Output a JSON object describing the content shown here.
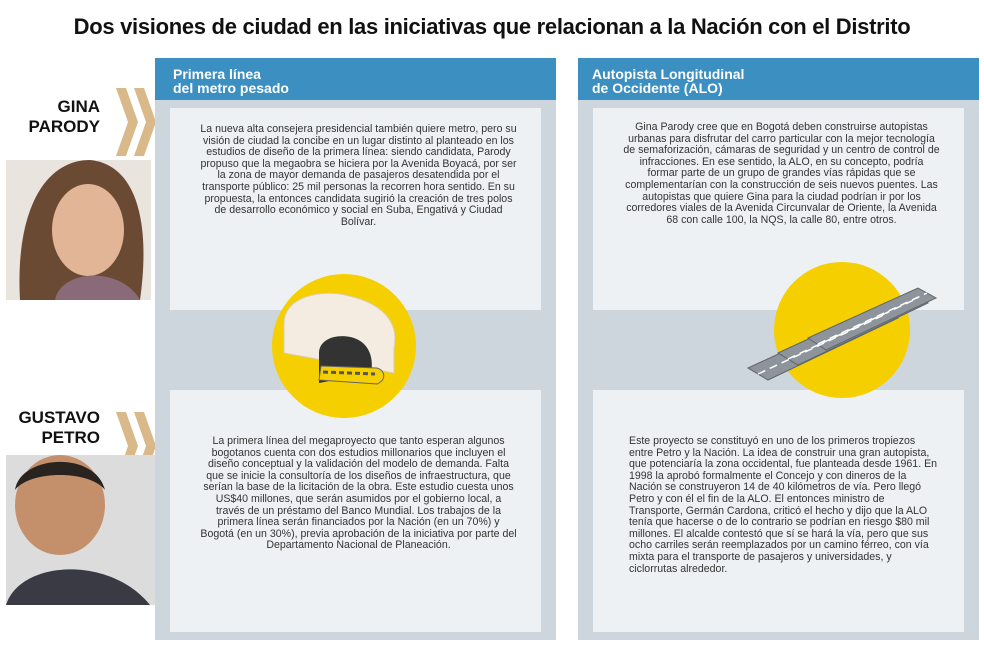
{
  "title": "Dos visiones de ciudad en las iniciativas que relacionan a la Nación con el Distrito",
  "people": [
    {
      "first": "GINA",
      "last": "PARODY"
    },
    {
      "first": "GUSTAVO",
      "last": "PETRO"
    }
  ],
  "columns": [
    {
      "header": [
        "Primera línea",
        "del metro pesado"
      ],
      "texts": [
        "La nueva alta consejera presidencial también quiere metro, pero su visión de ciudad la concibe en un lugar distinto al planteado en los estudios de diseño de la primera línea: siendo candidata, Parody propuso que la megaobra se hiciera por la Avenida Boyacá, por ser la zona de mayor demanda de pasajeros desatendida por el transporte público: 25 mil personas la recorren hora sentido. En su propuesta, la entonces candidata sugirió la creación de tres polos de desarrollo económico y social en Suba, Engativá y Ciudad Bolívar.",
        "La primera línea del megaproyecto que tanto esperan algunos bogotanos cuenta con dos estudios millonarios que incluyen el diseño conceptual y la validación del modelo de demanda. Falta que se inicie la consultoría de los diseños de infraestructura, que serían la base de la licitación de la obra. Este estudio cuesta unos US$40 millones, que serán asumidos por el gobierno local, a través de un préstamo del Banco Mundial. Los trabajos de la primera línea serán financiados por la Nación (en un 70%) y Bogotá (en un 30%), previa aprobación de la iniciativa por parte del Departamento Nacional de Planeación."
      ]
    },
    {
      "header": [
        "Autopista Longitudinal",
        "de Occidente (ALO)"
      ],
      "texts": [
        "Gina Parody cree que en Bogotá deben construirse autopistas urbanas para disfrutar del carro particular con la mejor tecnología de semaforización, cámaras de seguridad y un centro de control de infracciones. En ese sentido, la ALO, en su concepto, podría formar parte de un grupo de grandes vías rápidas que se complementarían con la construcción de seis nuevos puentes. Las autopistas que quiere Gina para la ciudad podrían ir por los corredores viales de la Avenida Circunvalar de Oriente, la Avenida 68 con calle 100, la NQS, la calle 80, entre otros.",
        "Este proyecto se constituyó en uno de los primeros tropiezos entre Petro y la Nación. La idea de construir una gran autopista, que potenciaría la zona occidental, fue planteada desde 1961. En 1998 la aprobó formalmente el Concejo y con dineros de la Nación se construyeron 14 de 40 kilómetros de vía. Pero llegó Petro y con él el fin de la ALO. El entonces ministro de Transporte, Germán Cardona, criticó el hecho y dijo que la ALO tenía que hacerse o de lo contrario se podrían en riesgo $80 mil millones. El alcalde contestó que sí se hará la vía, pero que sus ocho carriles serán reemplazados por un camino férreo, con vía mixta para el transporte de pasajeros y universidades, y ciclorrutas alrededor."
      ]
    }
  ]
}
